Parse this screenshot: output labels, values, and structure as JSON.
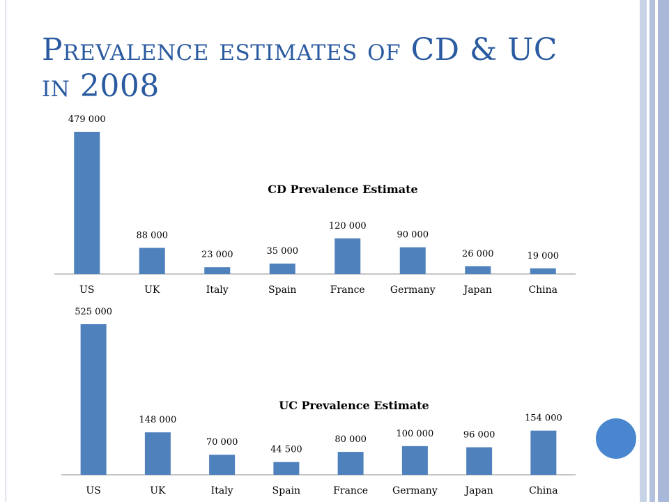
{
  "slide": {
    "title_line1": "Prevalence estimates of CD & UC",
    "title_line2": "in 2008",
    "accent_color": "#2a5aa0",
    "bar_color": "#4f81bd"
  },
  "chart_data": [
    {
      "type": "bar",
      "title": "CD Prevalence Estimate",
      "categories": [
        "US",
        "UK",
        "Italy",
        "Spain",
        "France",
        "Germany",
        "Japan",
        "China"
      ],
      "values": [
        479000,
        88000,
        23000,
        35000,
        120000,
        90000,
        26000,
        19000
      ],
      "value_labels": [
        "479 000",
        "88 000",
        "23 000",
        "35 000",
        "120 000",
        "90 000",
        "26 000",
        "19 000"
      ],
      "xlabel": "",
      "ylabel": "",
      "ylim": [
        0,
        479000
      ],
      "grid": false,
      "legend": "none"
    },
    {
      "type": "bar",
      "title": "UC Prevalence Estimate",
      "categories": [
        "US",
        "UK",
        "Italy",
        "Spain",
        "France",
        "Germany",
        "Japan",
        "China"
      ],
      "values": [
        525000,
        148000,
        70000,
        44500,
        80000,
        100000,
        96000,
        154000
      ],
      "value_labels": [
        "525 000",
        "148 000",
        "70 000",
        "44 500",
        "80 000",
        "100 000",
        "96 000",
        "154 000"
      ],
      "xlabel": "",
      "ylabel": "",
      "ylim": [
        0,
        525000
      ],
      "grid": false,
      "legend": "none"
    }
  ]
}
